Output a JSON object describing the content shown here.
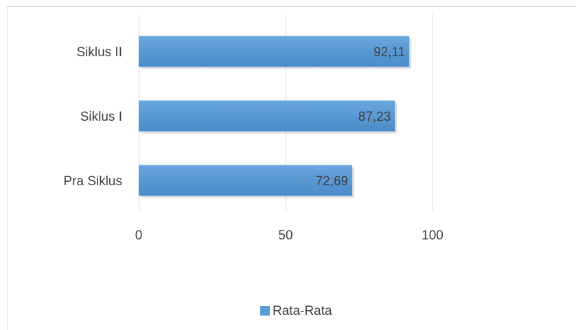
{
  "chart_data": {
    "type": "bar",
    "orientation": "horizontal",
    "categories": [
      "Pra Siklus",
      "Siklus I",
      "Siklus II"
    ],
    "series": [
      {
        "name": "Rata-Rata",
        "values": [
          72.69,
          87.23,
          92.11
        ],
        "labels": [
          "72,69",
          "87,23",
          "92,11"
        ]
      }
    ],
    "xlim": [
      0,
      125
    ],
    "xticks": [
      0,
      50,
      100
    ],
    "xtick_labels": [
      "0",
      "50",
      "100"
    ],
    "grid": true,
    "legend": "bottom-center",
    "colors": {
      "bar": "#5b9bd5",
      "bar_light": "#6aa6dd",
      "bar_dark": "#4a8bc9",
      "grid": "#d9d9d9",
      "text": "#404040",
      "frame": "#d9d9d9"
    }
  }
}
